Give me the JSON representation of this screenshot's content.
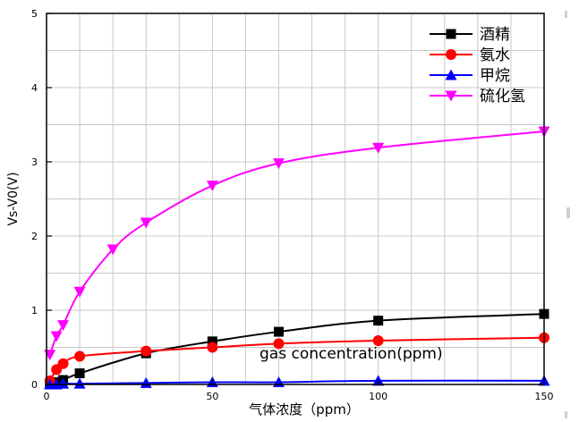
{
  "chart_data": {
    "type": "line",
    "title": "",
    "xlabel": "气体浓度（ppm）",
    "ylabel": "Vs-V0(V)",
    "annotation": "gas concentration(ppm)",
    "xlim": [
      0,
      150
    ],
    "ylim": [
      0,
      5
    ],
    "x_ticks": [
      0,
      50,
      100,
      150
    ],
    "y_ticks": [
      0,
      1,
      2,
      3,
      4,
      5
    ],
    "grid": true,
    "legend_position": "top-right",
    "series": [
      {
        "name": "酒精",
        "color": "#000000",
        "marker": "square",
        "x": [
          1,
          3,
          5,
          10,
          30,
          50,
          70,
          100,
          150
        ],
        "y": [
          0.01,
          0.03,
          0.06,
          0.15,
          0.42,
          0.58,
          0.71,
          0.86,
          0.95
        ]
      },
      {
        "name": "氨水",
        "color": "#ff0000",
        "marker": "circle",
        "x": [
          1,
          3,
          5,
          10,
          30,
          50,
          70,
          100,
          150
        ],
        "y": [
          0.05,
          0.2,
          0.28,
          0.38,
          0.45,
          0.5,
          0.55,
          0.59,
          0.63
        ]
      },
      {
        "name": "甲烷",
        "color": "#0000ff",
        "marker": "triangle-up",
        "x": [
          1,
          3,
          5,
          10,
          30,
          50,
          70,
          100,
          150
        ],
        "y": [
          0.0,
          0.0,
          0.01,
          0.01,
          0.02,
          0.03,
          0.03,
          0.05,
          0.05
        ]
      },
      {
        "name": "硫化氢",
        "color": "#ff00ff",
        "marker": "triangle-down",
        "x": [
          1,
          3,
          5,
          10,
          20,
          30,
          50,
          70,
          100,
          150
        ],
        "y": [
          0.4,
          0.65,
          0.8,
          1.25,
          1.82,
          2.18,
          2.68,
          2.98,
          3.19,
          3.41
        ]
      }
    ]
  }
}
